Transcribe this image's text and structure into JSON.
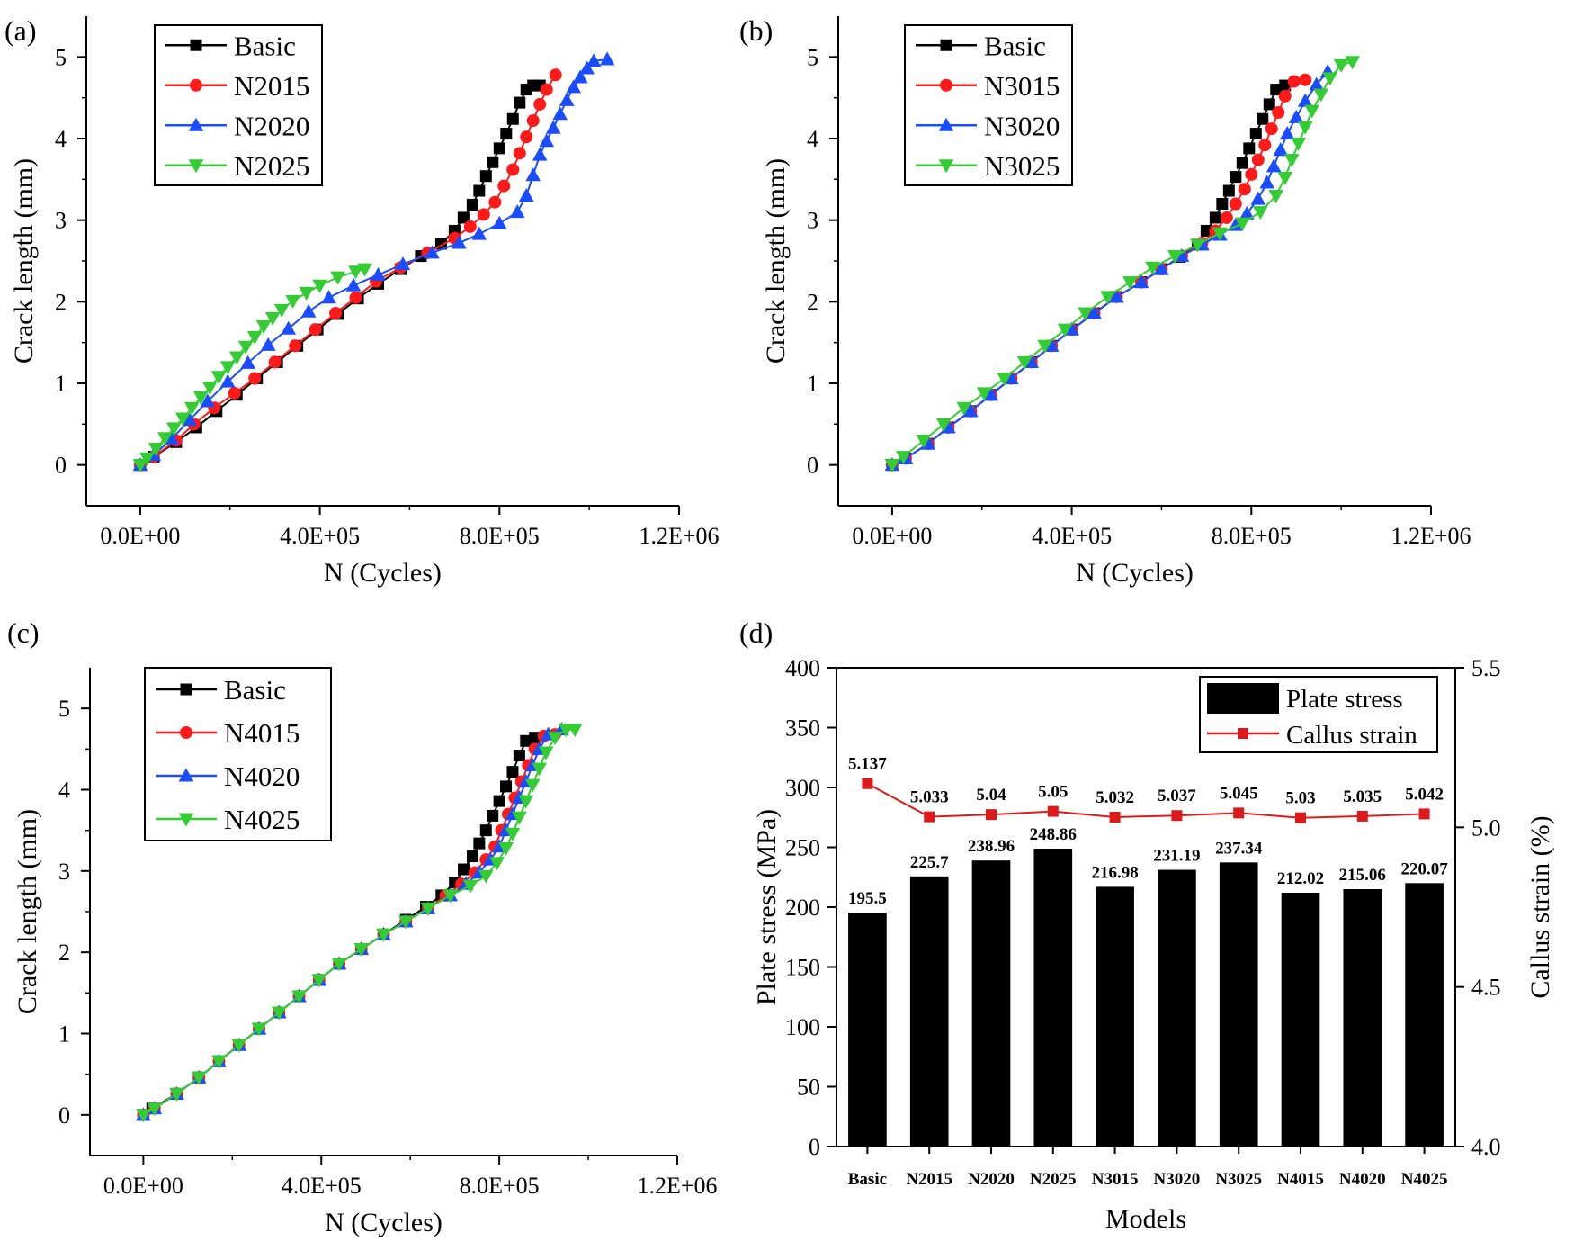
{
  "chart_data": [
    {
      "panel": "(a)",
      "type": "line",
      "xlabel": "N (Cycles)",
      "ylabel": "Crack length (mm)",
      "xlim": [
        -120000,
        1200000
      ],
      "ylim": [
        -0.5,
        5.5
      ],
      "xticks": [
        0,
        400000,
        800000,
        1200000
      ],
      "xtick_labels": [
        "0.0E+00",
        "4.0E+05",
        "8.0E+05",
        "1.2E+06"
      ],
      "yticks": [
        0,
        1,
        2,
        3,
        4,
        5
      ],
      "ytick_labels": [
        "0",
        "1",
        "2",
        "3",
        "4",
        "5"
      ],
      "legend_position": "top-left",
      "series": [
        {
          "name": "Basic",
          "color": "#000000",
          "marker": "square",
          "x": [
            0,
            30000,
            80000,
            125000,
            170000,
            215000,
            260000,
            305000,
            350000,
            395000,
            440000,
            485000,
            530000,
            580000,
            625000,
            670000,
            700000,
            720000,
            740000,
            755000,
            770000,
            785000,
            800000,
            815000,
            830000,
            845000,
            860000,
            875000,
            890000
          ],
          "y": [
            0,
            0.1,
            0.28,
            0.46,
            0.66,
            0.86,
            1.06,
            1.26,
            1.46,
            1.66,
            1.85,
            2.04,
            2.22,
            2.4,
            2.56,
            2.71,
            2.87,
            3.03,
            3.19,
            3.36,
            3.54,
            3.71,
            3.88,
            4.06,
            4.24,
            4.44,
            4.6,
            4.65,
            4.65
          ]
        },
        {
          "name": "N2015",
          "color": "#ff1a1a",
          "marker": "circle",
          "x": [
            0,
            30000,
            80000,
            120000,
            165000,
            210000,
            255000,
            300000,
            345000,
            390000,
            435000,
            480000,
            525000,
            580000,
            640000,
            700000,
            735000,
            765000,
            790000,
            810000,
            830000,
            845000,
            860000,
            875000,
            890000,
            905000,
            925000
          ],
          "y": [
            0,
            0.1,
            0.3,
            0.5,
            0.7,
            0.88,
            1.06,
            1.26,
            1.46,
            1.66,
            1.86,
            2.05,
            2.25,
            2.42,
            2.6,
            2.78,
            2.92,
            3.07,
            3.22,
            3.42,
            3.62,
            3.82,
            4.02,
            4.22,
            4.42,
            4.6,
            4.78
          ]
        },
        {
          "name": "N2020",
          "color": "#1a4dff",
          "marker": "triangle",
          "x": [
            0,
            30000,
            70000,
            110000,
            150000,
            195000,
            240000,
            285000,
            330000,
            375000,
            420000,
            475000,
            530000,
            585000,
            650000,
            710000,
            755000,
            800000,
            840000,
            860000,
            875000,
            890000,
            905000,
            920000,
            935000,
            950000,
            965000,
            980000,
            995000,
            1010000,
            1040000
          ],
          "y": [
            0,
            0.12,
            0.32,
            0.55,
            0.78,
            1.02,
            1.25,
            1.47,
            1.67,
            1.88,
            2.05,
            2.2,
            2.33,
            2.46,
            2.6,
            2.72,
            2.83,
            2.96,
            3.1,
            3.3,
            3.55,
            3.8,
            3.97,
            4.13,
            4.3,
            4.47,
            4.63,
            4.75,
            4.86,
            4.95,
            4.97
          ]
        },
        {
          "name": "N2025",
          "color": "#33cc33",
          "marker": "triangle-down",
          "x": [
            0,
            15000,
            35000,
            55000,
            75000,
            95000,
            115000,
            135000,
            155000,
            175000,
            195000,
            215000,
            235000,
            255000,
            275000,
            295000,
            315000,
            340000,
            370000,
            400000,
            440000,
            480000,
            500000
          ],
          "y": [
            0,
            0.08,
            0.2,
            0.33,
            0.45,
            0.57,
            0.7,
            0.83,
            0.95,
            1.08,
            1.2,
            1.32,
            1.45,
            1.57,
            1.7,
            1.8,
            1.9,
            2.01,
            2.11,
            2.2,
            2.3,
            2.37,
            2.4
          ]
        }
      ]
    },
    {
      "panel": "(b)",
      "type": "line",
      "xlabel": "N (Cycles)",
      "ylabel": "Crack length (mm)",
      "xlim": [
        -120000,
        1200000
      ],
      "ylim": [
        -0.5,
        5.5
      ],
      "xticks": [
        0,
        400000,
        800000,
        1200000
      ],
      "xtick_labels": [
        "0.0E+00",
        "4.0E+05",
        "8.0E+05",
        "1.2E+06"
      ],
      "yticks": [
        0,
        1,
        2,
        3,
        4,
        5
      ],
      "ytick_labels": [
        "0",
        "1",
        "2",
        "3",
        "4",
        "5"
      ],
      "legend_position": "top-left",
      "series": [
        {
          "name": "Basic",
          "color": "#000000",
          "marker": "square",
          "x": [
            0,
            30000,
            80000,
            125000,
            175000,
            220000,
            265000,
            310000,
            355000,
            400000,
            450000,
            500000,
            555000,
            600000,
            640000,
            680000,
            700000,
            720000,
            735000,
            750000,
            765000,
            780000,
            795000,
            810000,
            825000,
            840000,
            855000,
            875000
          ],
          "y": [
            0,
            0.08,
            0.26,
            0.46,
            0.66,
            0.86,
            1.06,
            1.26,
            1.46,
            1.66,
            1.86,
            2.06,
            2.24,
            2.4,
            2.55,
            2.7,
            2.87,
            3.03,
            3.2,
            3.36,
            3.53,
            3.7,
            3.88,
            4.06,
            4.24,
            4.42,
            4.6,
            4.65
          ]
        },
        {
          "name": "N3015",
          "color": "#ff1a1a",
          "marker": "circle",
          "x": [
            0,
            30000,
            80000,
            125000,
            175000,
            220000,
            265000,
            310000,
            355000,
            400000,
            450000,
            500000,
            555000,
            600000,
            645000,
            690000,
            720000,
            745000,
            765000,
            785000,
            800000,
            815000,
            830000,
            845000,
            860000,
            875000,
            895000,
            920000
          ],
          "y": [
            0,
            0.08,
            0.26,
            0.46,
            0.66,
            0.86,
            1.06,
            1.26,
            1.46,
            1.66,
            1.86,
            2.06,
            2.24,
            2.4,
            2.56,
            2.72,
            2.87,
            3.03,
            3.2,
            3.38,
            3.56,
            3.74,
            3.92,
            4.12,
            4.32,
            4.52,
            4.7,
            4.72
          ]
        },
        {
          "name": "N3020",
          "color": "#1a4dff",
          "marker": "triangle",
          "x": [
            0,
            30000,
            80000,
            125000,
            175000,
            220000,
            265000,
            310000,
            355000,
            400000,
            450000,
            500000,
            555000,
            600000,
            645000,
            690000,
            730000,
            765000,
            790000,
            815000,
            835000,
            850000,
            865000,
            880000,
            900000,
            920000,
            945000,
            970000
          ],
          "y": [
            0,
            0.08,
            0.26,
            0.46,
            0.66,
            0.86,
            1.06,
            1.26,
            1.46,
            1.66,
            1.86,
            2.06,
            2.24,
            2.4,
            2.56,
            2.7,
            2.82,
            2.94,
            3.08,
            3.26,
            3.46,
            3.66,
            3.86,
            4.06,
            4.26,
            4.46,
            4.66,
            4.82
          ]
        },
        {
          "name": "N3025",
          "color": "#33cc33",
          "marker": "triangle-down",
          "x": [
            0,
            25000,
            70000,
            115000,
            160000,
            205000,
            250000,
            295000,
            340000,
            385000,
            430000,
            480000,
            530000,
            580000,
            630000,
            680000,
            730000,
            780000,
            820000,
            855000,
            875000,
            890000,
            905000,
            920000,
            935000,
            955000,
            975000,
            1000000,
            1025000
          ],
          "y": [
            0,
            0.1,
            0.3,
            0.5,
            0.7,
            0.88,
            1.06,
            1.26,
            1.46,
            1.66,
            1.86,
            2.06,
            2.24,
            2.42,
            2.56,
            2.7,
            2.84,
            2.96,
            3.1,
            3.3,
            3.52,
            3.74,
            3.94,
            4.14,
            4.34,
            4.54,
            4.74,
            4.9,
            4.94
          ]
        }
      ]
    },
    {
      "panel": "(c)",
      "type": "line",
      "xlabel": "N (Cycles)",
      "ylabel": "Crack length (mm)",
      "xlim": [
        -120000,
        1200000
      ],
      "ylim": [
        -0.5,
        5.5
      ],
      "xticks": [
        0,
        400000,
        800000,
        1200000
      ],
      "xtick_labels": [
        "0.0E+00",
        "4.0E+05",
        "8.0E+05",
        "1.2E+06"
      ],
      "yticks": [
        0,
        1,
        2,
        3,
        4,
        5
      ],
      "ytick_labels": [
        "0",
        "1",
        "2",
        "3",
        "4",
        "5"
      ],
      "legend_position": "top-left",
      "series": [
        {
          "name": "Basic",
          "color": "#000000",
          "marker": "square",
          "x": [
            0,
            20000,
            75000,
            125000,
            170000,
            215000,
            260000,
            305000,
            350000,
            395000,
            440000,
            490000,
            540000,
            590000,
            635000,
            670000,
            700000,
            720000,
            740000,
            755000,
            770000,
            785000,
            800000,
            815000,
            830000,
            845000,
            860000,
            880000
          ],
          "y": [
            0,
            0.08,
            0.26,
            0.46,
            0.66,
            0.86,
            1.06,
            1.26,
            1.46,
            1.66,
            1.86,
            2.04,
            2.22,
            2.4,
            2.56,
            2.7,
            2.86,
            3.02,
            3.18,
            3.34,
            3.5,
            3.68,
            3.86,
            4.04,
            4.22,
            4.42,
            4.6,
            4.64
          ]
        },
        {
          "name": "N4015",
          "color": "#ff1a1a",
          "marker": "circle",
          "x": [
            0,
            25000,
            75000,
            125000,
            170000,
            215000,
            260000,
            305000,
            350000,
            395000,
            440000,
            490000,
            540000,
            590000,
            640000,
            680000,
            715000,
            745000,
            770000,
            790000,
            805000,
            820000,
            835000,
            850000,
            865000,
            880000,
            900000,
            925000
          ],
          "y": [
            0,
            0.08,
            0.26,
            0.46,
            0.66,
            0.86,
            1.06,
            1.26,
            1.46,
            1.66,
            1.86,
            2.04,
            2.22,
            2.38,
            2.54,
            2.7,
            2.84,
            2.98,
            3.14,
            3.3,
            3.5,
            3.7,
            3.9,
            4.1,
            4.3,
            4.5,
            4.66,
            4.68
          ]
        },
        {
          "name": "N4020",
          "color": "#1a4dff",
          "marker": "triangle",
          "x": [
            0,
            25000,
            75000,
            125000,
            170000,
            215000,
            260000,
            305000,
            350000,
            395000,
            440000,
            490000,
            540000,
            590000,
            640000,
            690000,
            725000,
            755000,
            780000,
            800000,
            815000,
            830000,
            845000,
            860000,
            875000,
            890000,
            910000,
            940000
          ],
          "y": [
            0,
            0.08,
            0.26,
            0.46,
            0.66,
            0.86,
            1.06,
            1.26,
            1.46,
            1.66,
            1.86,
            2.04,
            2.22,
            2.38,
            2.54,
            2.7,
            2.84,
            2.98,
            3.14,
            3.3,
            3.5,
            3.7,
            3.9,
            4.1,
            4.3,
            4.5,
            4.68,
            4.74
          ]
        },
        {
          "name": "N4025",
          "color": "#33cc33",
          "marker": "triangle-down",
          "x": [
            0,
            25000,
            75000,
            125000,
            170000,
            215000,
            260000,
            305000,
            350000,
            395000,
            440000,
            490000,
            540000,
            590000,
            640000,
            690000,
            735000,
            770000,
            795000,
            815000,
            830000,
            845000,
            860000,
            875000,
            890000,
            905000,
            925000,
            950000,
            970000
          ],
          "y": [
            0,
            0.08,
            0.26,
            0.46,
            0.66,
            0.86,
            1.06,
            1.26,
            1.46,
            1.66,
            1.86,
            2.04,
            2.22,
            2.38,
            2.54,
            2.7,
            2.82,
            2.94,
            3.1,
            3.28,
            3.46,
            3.66,
            3.86,
            4.06,
            4.26,
            4.46,
            4.64,
            4.74,
            4.74
          ]
        }
      ]
    },
    {
      "panel": "(d)",
      "type": "bar",
      "xlabel": "Models",
      "ylabel": "Plate stress (MPa)",
      "y2label": "Callus strain (%)",
      "categories": [
        "Basic",
        "N2015",
        "N2020",
        "N2025",
        "N3015",
        "N3020",
        "N3025",
        "N4015",
        "N4020",
        "N4025"
      ],
      "ylim": [
        0,
        400
      ],
      "yticks": [
        0,
        50,
        100,
        150,
        200,
        250,
        300,
        350,
        400
      ],
      "ytick_labels": [
        "0",
        "50",
        "100",
        "150",
        "200",
        "250",
        "300",
        "350",
        "400"
      ],
      "y2lim": [
        4.0,
        5.5
      ],
      "y2ticks": [
        4.0,
        4.5,
        5.0,
        5.5
      ],
      "y2tick_labels": [
        "4.0",
        "4.5",
        "5.0",
        "5.5"
      ],
      "legend_position": "top-right",
      "series": [
        {
          "name": "Plate stress",
          "type": "bar",
          "axis": "left",
          "color": "#000000",
          "values": [
            195.5,
            225.7,
            238.96,
            248.86,
            216.98,
            231.19,
            237.34,
            212.02,
            215.06,
            220.07
          ],
          "value_labels": [
            "195.5",
            "225.7",
            "238.96",
            "248.86",
            "216.98",
            "231.19",
            "237.34",
            "212.02",
            "215.06",
            "220.07"
          ]
        },
        {
          "name": "Callus strain",
          "type": "line",
          "axis": "right",
          "color": "#dd1a1a",
          "values": [
            5.137,
            5.033,
            5.04,
            5.05,
            5.032,
            5.037,
            5.045,
            5.03,
            5.035,
            5.042
          ],
          "value_labels": [
            "5.137",
            "5.033",
            "5.04",
            "5.05",
            "5.032",
            "5.037",
            "5.045",
            "5.03",
            "5.035",
            "5.042"
          ]
        }
      ]
    }
  ]
}
